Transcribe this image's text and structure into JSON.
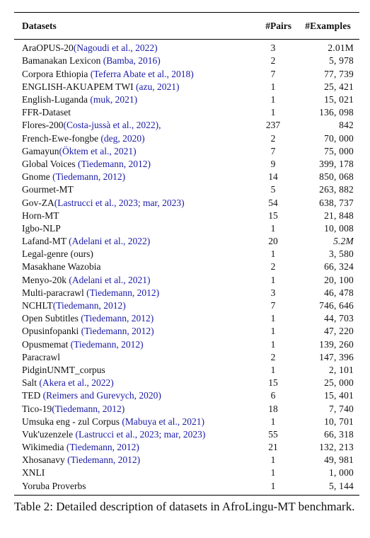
{
  "table": {
    "headers": {
      "dataset": "Datasets",
      "pairs": "#Pairs",
      "examples": "#Examples"
    },
    "rows": [
      {
        "name": "AraOPUS-20",
        "cite": "(Nagoudi et al., 2022)",
        "pairs": "3",
        "examples": "2.01M"
      },
      {
        "name": "Bamanakan Lexicon",
        "cite": "(Bamba, 2016)",
        "pairs": "2",
        "examples": "5, 978"
      },
      {
        "name": "Corpora Ethiopia",
        "cite": "(Teferra Abate et al., 2018)",
        "pairs": "7",
        "examples": "77, 739"
      },
      {
        "name": "ENGLISH-AKUAPEM TWI",
        "cite": "(azu, 2021)",
        "pairs": "1",
        "examples": "25, 421"
      },
      {
        "name": "English-Luganda",
        "cite": "(muk, 2021)",
        "pairs": "1",
        "examples": "15, 021"
      },
      {
        "name": "FFR-Dataset",
        "cite": "",
        "pairs": "1",
        "examples": "136, 098"
      },
      {
        "name": "Flores-200",
        "cite": "(Costa-jussà et al., 2022),",
        "pairs": "237",
        "examples": "842"
      },
      {
        "name": "French-Ewe-fongbe",
        "cite": "(deg, 2020)",
        "pairs": "2",
        "examples": "70, 000"
      },
      {
        "name": "Gamayun",
        "cite": "(Öktem et al., 2021)",
        "pairs": "7",
        "examples": "75, 000"
      },
      {
        "name": "Global Voices",
        "cite": "(Tiedemann, 2012)",
        "pairs": "9",
        "examples": "399, 178"
      },
      {
        "name": "Gnome",
        "cite": "(Tiedemann, 2012)",
        "pairs": "14",
        "examples": "850, 068"
      },
      {
        "name": "Gourmet-MT",
        "cite": "",
        "pairs": "5",
        "examples": "263, 882"
      },
      {
        "name": "Gov-ZA",
        "cite": "(Lastrucci et al., 2023; mar, 2023)",
        "pairs": "54",
        "examples": "638, 737"
      },
      {
        "name": "Horn-MT",
        "cite": "",
        "pairs": "15",
        "examples": "21, 848"
      },
      {
        "name": "Igbo-NLP",
        "cite": "",
        "pairs": "1",
        "examples": "10, 008"
      },
      {
        "name": "Lafand-MT",
        "cite": "(Adelani et al., 2022)",
        "pairs": "20",
        "examples": "5.2M"
      },
      {
        "name": "Legal-genre (ours)",
        "cite": "",
        "pairs": "1",
        "examples": "3, 580"
      },
      {
        "name": "Masakhane Wazobia",
        "cite": "",
        "pairs": "2",
        "examples": "66, 324"
      },
      {
        "name": "Menyo-20k",
        "cite": "(Adelani et al., 2021)",
        "pairs": "1",
        "examples": "20, 100"
      },
      {
        "name": "Multi-paracrawl",
        "cite": "(Tiedemann, 2012)",
        "pairs": "3",
        "examples": "46, 478"
      },
      {
        "name": "NCHLT",
        "cite": "(Tiedemann, 2012)",
        "pairs": "7",
        "examples": "746, 646"
      },
      {
        "name": "Open Subtitles",
        "cite": "(Tiedemann, 2012)",
        "pairs": "1",
        "examples": "44, 703"
      },
      {
        "name": "Opusinfopanki",
        "cite": "(Tiedemann, 2012)",
        "pairs": "1",
        "examples": "47, 220"
      },
      {
        "name": "Opusmemat",
        "cite": "(Tiedemann, 2012)",
        "pairs": "1",
        "examples": "139, 260"
      },
      {
        "name": "Paracrawl",
        "cite": "",
        "pairs": "2",
        "examples": "147, 396"
      },
      {
        "name": "PidginUNMT_corpus",
        "cite": "",
        "pairs": "1",
        "examples": "2, 101"
      },
      {
        "name": "Salt",
        "cite": "(Akera et al., 2022)",
        "pairs": "15",
        "examples": "25, 000"
      },
      {
        "name": "TED",
        "cite": "(Reimers and Gurevych, 2020)",
        "pairs": "6",
        "examples": "15, 401"
      },
      {
        "name": "Tico-19",
        "cite": "(Tiedemann, 2012)",
        "pairs": "18",
        "examples": "7, 740"
      },
      {
        "name": "Umsuka eng - zul Corpus",
        "cite": "(Mabuya et al., 2021)",
        "pairs": "1",
        "examples": "10, 701"
      },
      {
        "name": "Vuk'uzenzele",
        "cite": "(Lastrucci et al., 2023; mar, 2023)",
        "pairs": "55",
        "examples": "66, 318"
      },
      {
        "name": "Wikimedia",
        "cite": "(Tiedemann, 2012)",
        "pairs": "21",
        "examples": "132, 213"
      },
      {
        "name": "Xhosanavy",
        "cite": "(Tiedemann, 2012)",
        "pairs": "1",
        "examples": "49, 981"
      },
      {
        "name": "XNLI",
        "cite": "",
        "pairs": "1",
        "examples": "1, 000"
      },
      {
        "name": "Yoruba Proverbs",
        "cite": "",
        "pairs": "1",
        "examples": "5, 144"
      }
    ]
  },
  "caption": "Table 2: Detailed description of datasets in AfroLingu-MT benchmark.",
  "colors": {
    "citation": "#1a1aa6",
    "text": "#111111"
  }
}
